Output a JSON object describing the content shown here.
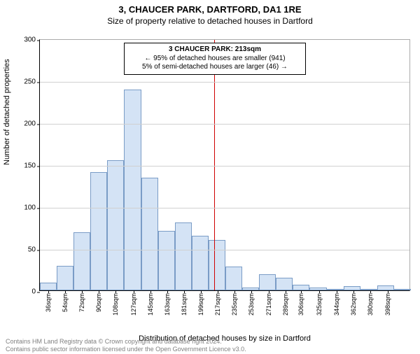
{
  "title": "3, CHAUCER PARK, DARTFORD, DA1 1RE",
  "subtitle": "Size of property relative to detached houses in Dartford",
  "ylabel": "Number of detached properties",
  "xlabel": "Distribution of detached houses by size in Dartford",
  "copyright_line1": "Contains HM Land Registry data © Crown copyright and database right 2024.",
  "copyright_line2": "Contains public sector information licensed under the Open Government Licence v3.0.",
  "chart": {
    "type": "histogram",
    "ylim": [
      0,
      300
    ],
    "ytick_step": 50,
    "xtick_labels": [
      "36sqm",
      "54sqm",
      "72sqm",
      "90sqm",
      "108sqm",
      "127sqm",
      "145sqm",
      "163sqm",
      "181sqm",
      "199sqm",
      "217sqm",
      "235sqm",
      "253sqm",
      "271sqm",
      "289sqm",
      "306sqm",
      "325sqm",
      "344sqm",
      "362sqm",
      "380sqm",
      "398sqm"
    ],
    "categories": [
      36,
      54,
      72,
      90,
      108,
      127,
      145,
      163,
      181,
      199,
      217,
      235,
      253,
      271,
      289,
      306,
      325,
      344,
      362,
      380,
      398
    ],
    "values": [
      9,
      29,
      69,
      141,
      155,
      239,
      134,
      71,
      81,
      65,
      60,
      28,
      3,
      19,
      15,
      7,
      3,
      1,
      5,
      2,
      6,
      1
    ],
    "bar_fill": "#d4e3f5",
    "bar_border": "#7a9cc6",
    "grid_color": "#d0d0d0",
    "background": "#ffffff",
    "axis_color": "#000000",
    "ref_line_x": 213,
    "ref_line_color": "#d00000",
    "annotation": {
      "title": "3 CHAUCER PARK: 213sqm",
      "line1": "← 95% of detached houses are smaller (941)",
      "line2": "5% of semi-detached houses are larger (46) →"
    },
    "bin_start": 27,
    "bin_width": 18,
    "label_fontsize": 11,
    "tick_fontsize": 10
  }
}
